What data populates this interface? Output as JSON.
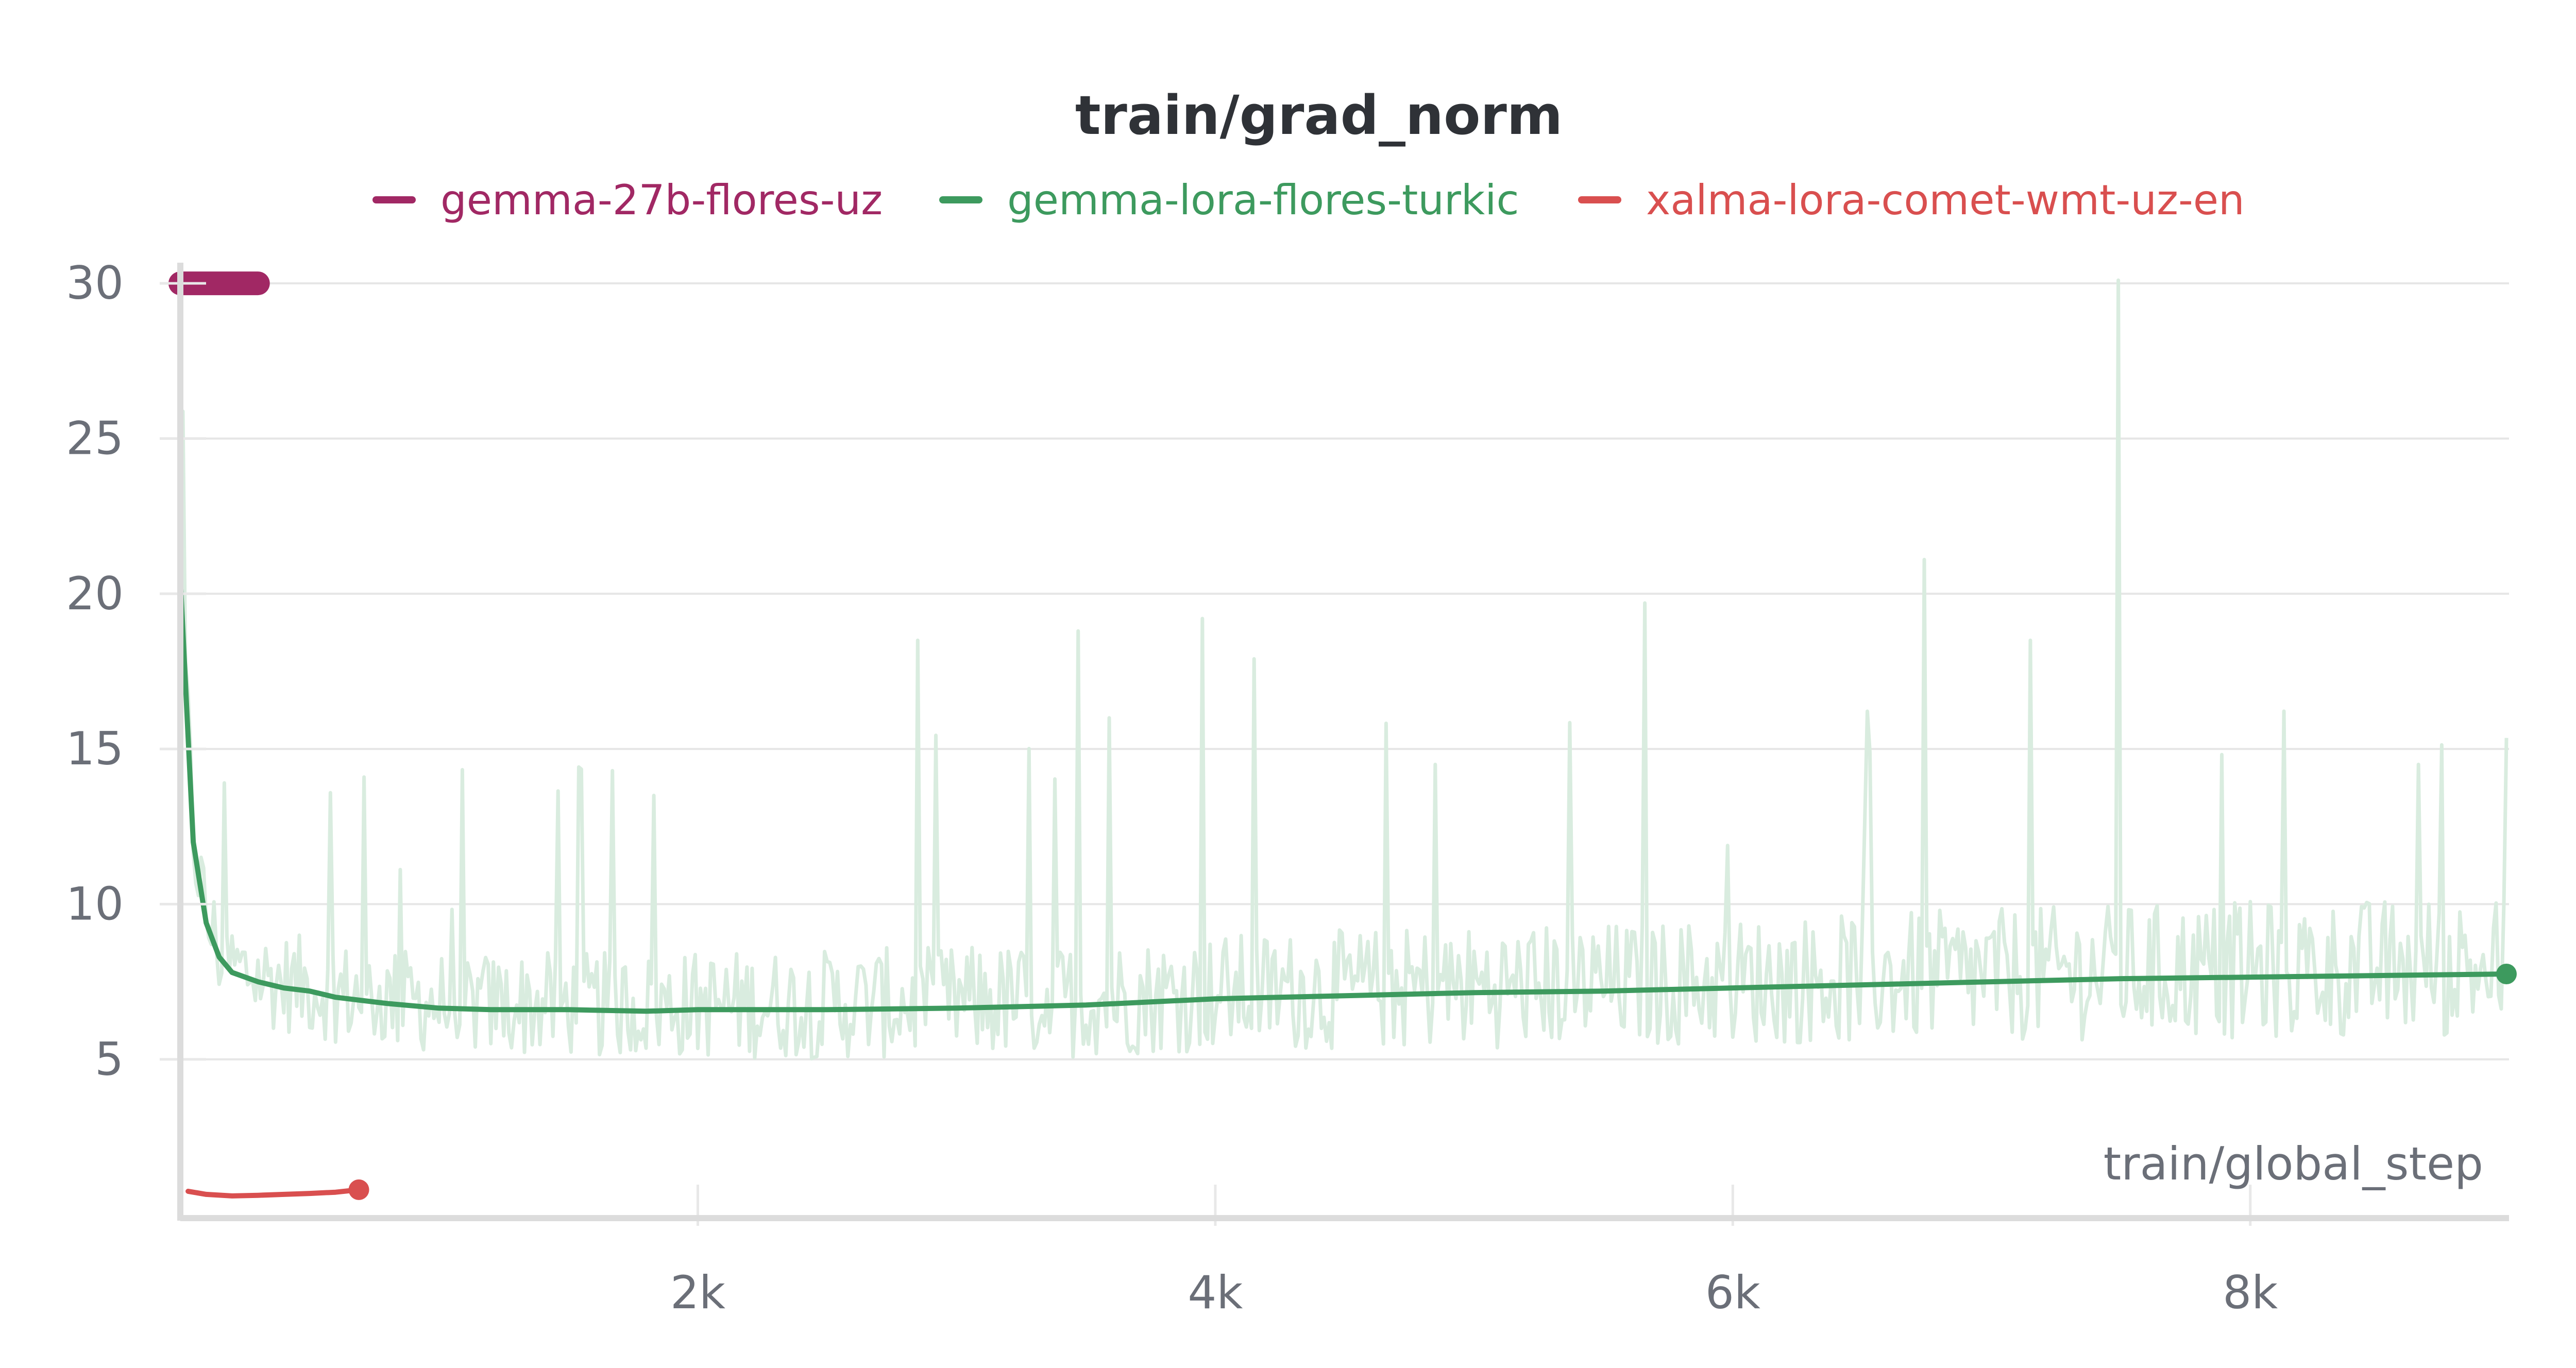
{
  "chart_data": {
    "type": "line",
    "title": "train/grad_norm",
    "xlabel": "train/global_step",
    "ylabel": "",
    "xlim": [
      0,
      9000
    ],
    "ylim": [
      0.3,
      30.5
    ],
    "x_ticks": [
      {
        "value": 2000,
        "label": "2k"
      },
      {
        "value": 4000,
        "label": "4k"
      },
      {
        "value": 6000,
        "label": "6k"
      },
      {
        "value": 8000,
        "label": "8k"
      }
    ],
    "y_ticks": [
      {
        "value": 5,
        "label": "5"
      },
      {
        "value": 10,
        "label": "10"
      },
      {
        "value": 15,
        "label": "15"
      },
      {
        "value": 20,
        "label": "20"
      },
      {
        "value": 25,
        "label": "25"
      },
      {
        "value": 30,
        "label": "30"
      }
    ],
    "grid": true,
    "legend_position": "top",
    "series": [
      {
        "name": "gemma-27b-flores-uz",
        "color": "#a12864",
        "x": [
          0,
          100,
          200,
          300
        ],
        "y": [
          30,
          30,
          30,
          30
        ]
      },
      {
        "name": "gemma-lora-flores-turkic",
        "color": "#3d9a5e",
        "raw_color": "#d9ecdf",
        "x": [
          0,
          50,
          100,
          150,
          200,
          300,
          400,
          500,
          600,
          700,
          800,
          1000,
          1200,
          1500,
          1800,
          2000,
          2500,
          3000,
          3500,
          4000,
          4500,
          5000,
          5500,
          6000,
          6500,
          7000,
          7500,
          8000,
          8500,
          8990
        ],
        "y": [
          20.5,
          12.0,
          9.4,
          8.3,
          7.8,
          7.5,
          7.3,
          7.2,
          7.0,
          6.9,
          6.8,
          6.65,
          6.6,
          6.6,
          6.55,
          6.6,
          6.6,
          6.65,
          6.75,
          6.95,
          7.05,
          7.15,
          7.2,
          7.3,
          7.4,
          7.5,
          7.6,
          7.65,
          7.7,
          7.75
        ],
        "raw_peaks": [
          {
            "x": 1830,
            "y": 13.5
          },
          {
            "x": 2850,
            "y": 18.5
          },
          {
            "x": 3470,
            "y": 18.8
          },
          {
            "x": 3590,
            "y": 16.0
          },
          {
            "x": 3950,
            "y": 19.2
          },
          {
            "x": 4150,
            "y": 17.9
          },
          {
            "x": 4850,
            "y": 14.5
          },
          {
            "x": 5660,
            "y": 19.7
          },
          {
            "x": 6740,
            "y": 21.1
          },
          {
            "x": 7150,
            "y": 18.5
          },
          {
            "x": 7490,
            "y": 30.1
          },
          {
            "x": 8650,
            "y": 14.5
          }
        ],
        "end_point": {
          "x": 8990,
          "y": 7.75
        }
      },
      {
        "name": "xalma-lora-comet-wmt-uz-en",
        "color": "#d94f4f",
        "x": [
          30,
          100,
          200,
          300,
          400,
          500,
          600,
          690
        ],
        "y": [
          0.75,
          0.65,
          0.6,
          0.62,
          0.65,
          0.68,
          0.72,
          0.8
        ],
        "end_point": {
          "x": 690,
          "y": 0.8
        }
      }
    ]
  }
}
